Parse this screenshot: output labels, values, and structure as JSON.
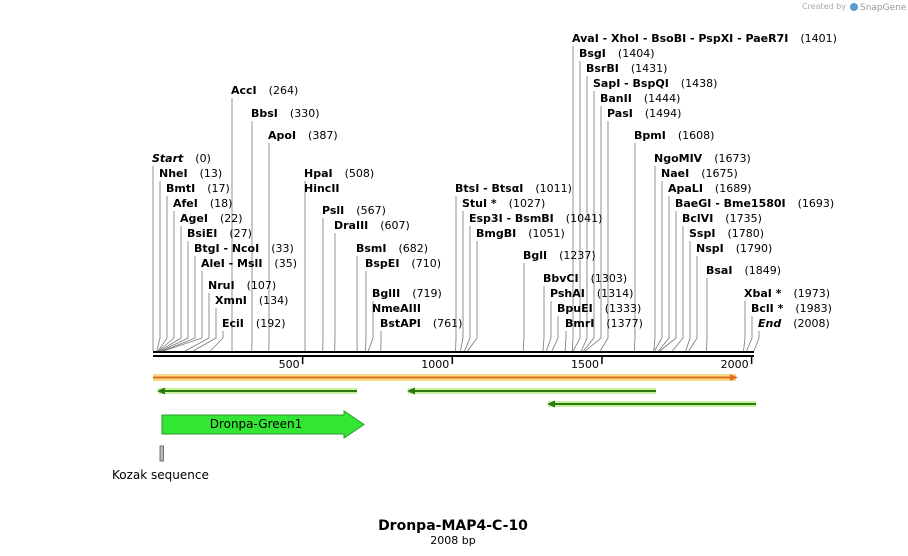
{
  "credit": {
    "prefix": "Created by",
    "brand": "SnapGene"
  },
  "title": "Dronpa-MAP4-C-10",
  "subtitle": "2008 bp",
  "ruler": {
    "ticks": [
      500,
      1000,
      1500,
      2000
    ]
  },
  "features": {
    "cds": "Dronpa-Green1",
    "kozak": "Kozak sequence"
  },
  "sites": [
    {
      "name": "AvaI  -  XhoI  -  BsoBI  -  PspXI  -  PaeR7I",
      "pos": "(1401)"
    },
    {
      "name": "BsgI",
      "pos": "(1404)"
    },
    {
      "name": "BsrBI",
      "pos": "(1431)"
    },
    {
      "name": "SapI  -  BspQI",
      "pos": "(1438)"
    },
    {
      "name": "BanII",
      "pos": "(1444)"
    },
    {
      "name": "PasI",
      "pos": "(1494)"
    },
    {
      "name": "BpmI",
      "pos": "(1608)"
    },
    {
      "name": "NgoMIV",
      "pos": "(1673)"
    },
    {
      "name": "NaeI",
      "pos": "(1675)"
    },
    {
      "name": "ApaLI",
      "pos": "(1689)"
    },
    {
      "name": "BaeGI  -  Bme1580I",
      "pos": "(1693)"
    },
    {
      "name": "BclVI",
      "pos": "(1735)"
    },
    {
      "name": "SspI",
      "pos": "(1780)"
    },
    {
      "name": "NspI",
      "pos": "(1790)"
    },
    {
      "name": "BsaI",
      "pos": "(1849)"
    },
    {
      "name": "XbaI *",
      "pos": "(1973)"
    },
    {
      "name": "BclI *",
      "pos": "(1983)"
    },
    {
      "name": "End",
      "pos": "(2008)"
    },
    {
      "name": "AccI",
      "pos": "(264)"
    },
    {
      "name": "BbsI",
      "pos": "(330)"
    },
    {
      "name": "ApoI",
      "pos": "(387)"
    },
    {
      "name": "Start",
      "pos": "(0)"
    },
    {
      "name": "NheI",
      "pos": "(13)"
    },
    {
      "name": "BmtI",
      "pos": "(17)"
    },
    {
      "name": "AfeI",
      "pos": "(18)"
    },
    {
      "name": "AgeI",
      "pos": "(22)"
    },
    {
      "name": "BsiEI",
      "pos": "(27)"
    },
    {
      "name": "BtgI  -  NcoI",
      "pos": "(33)"
    },
    {
      "name": "AleI  -  MslI",
      "pos": "(35)"
    },
    {
      "name": "NruI",
      "pos": "(107)"
    },
    {
      "name": "XmnI",
      "pos": "(134)"
    },
    {
      "name": "EciI",
      "pos": "(192)"
    },
    {
      "name": "HpaI",
      "pos": "(508)"
    },
    {
      "name": "HincII",
      "pos": null
    },
    {
      "name": "PslI",
      "pos": "(567)"
    },
    {
      "name": "DraIII",
      "pos": "(607)"
    },
    {
      "name": "BsmI",
      "pos": "(682)"
    },
    {
      "name": "BspEI",
      "pos": "(710)"
    },
    {
      "name": "BglII",
      "pos": "(719)"
    },
    {
      "name": "NmeAIII",
      "pos": null
    },
    {
      "name": "BstAPI",
      "pos": "(761)"
    },
    {
      "name": "BtsI  -  BtsαI",
      "pos": "(1011)"
    },
    {
      "name": "StuI *",
      "pos": "(1027)"
    },
    {
      "name": "Esp3I  -  BsmBI",
      "pos": "(1041)"
    },
    {
      "name": "BmgBI",
      "pos": "(1051)"
    },
    {
      "name": "BglI",
      "pos": "(1237)"
    },
    {
      "name": "BbvCI",
      "pos": "(1303)"
    },
    {
      "name": "PshAI",
      "pos": "(1314)"
    },
    {
      "name": "BpuEI",
      "pos": "(1333)"
    },
    {
      "name": "BmrI",
      "pos": "(1377)"
    }
  ]
}
